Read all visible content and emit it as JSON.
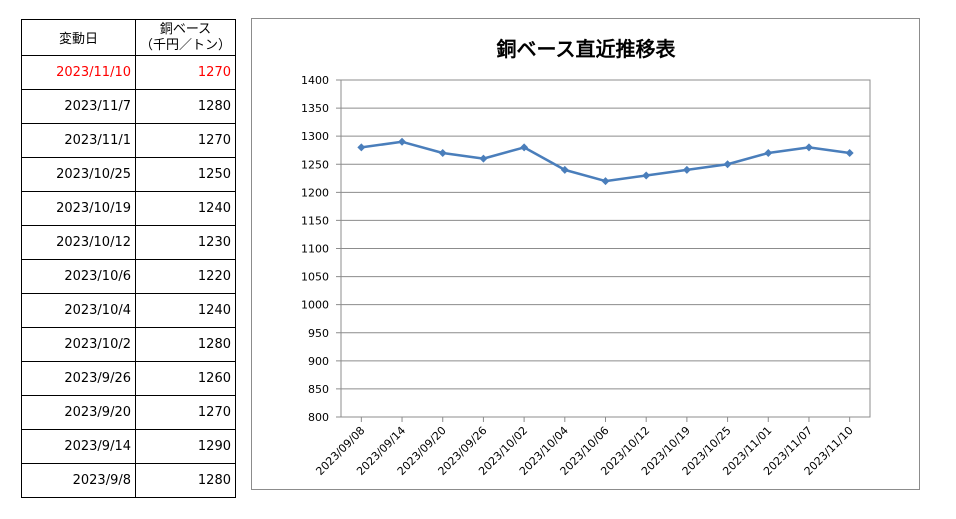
{
  "table": {
    "header_date": "変動日",
    "header_price_1": "銅ベース",
    "header_price_2": "（千円／トン）",
    "rows": [
      {
        "date": "2023/11/10",
        "price": "1270"
      },
      {
        "date": "2023/11/7",
        "price": "1280"
      },
      {
        "date": "2023/11/1",
        "price": "1270"
      },
      {
        "date": "2023/10/25",
        "price": "1250"
      },
      {
        "date": "2023/10/19",
        "price": "1240"
      },
      {
        "date": "2023/10/12",
        "price": "1230"
      },
      {
        "date": "2023/10/6",
        "price": "1220"
      },
      {
        "date": "2023/10/4",
        "price": "1240"
      },
      {
        "date": "2023/10/2",
        "price": "1280"
      },
      {
        "date": "2023/9/26",
        "price": "1260"
      },
      {
        "date": "2023/9/20",
        "price": "1270"
      },
      {
        "date": "2023/9/14",
        "price": "1290"
      },
      {
        "date": "2023/9/8",
        "price": "1280"
      }
    ],
    "latest_color": "#ff0000"
  },
  "chart_data": {
    "type": "line",
    "title": "銅ベース直近推移表",
    "categories": [
      "2023/09/08",
      "2023/09/14",
      "2023/09/20",
      "2023/09/26",
      "2023/10/02",
      "2023/10/04",
      "2023/10/06",
      "2023/10/12",
      "2023/10/19",
      "2023/10/25",
      "2023/11/01",
      "2023/11/07",
      "2023/11/10"
    ],
    "values": [
      1280,
      1290,
      1270,
      1260,
      1280,
      1240,
      1220,
      1230,
      1240,
      1250,
      1270,
      1280,
      1270
    ],
    "ylim": [
      800,
      1400
    ],
    "ytick_step": 50,
    "grid": true,
    "legend": "none",
    "line_color": "#4a7ebb",
    "marker": "diamond"
  }
}
